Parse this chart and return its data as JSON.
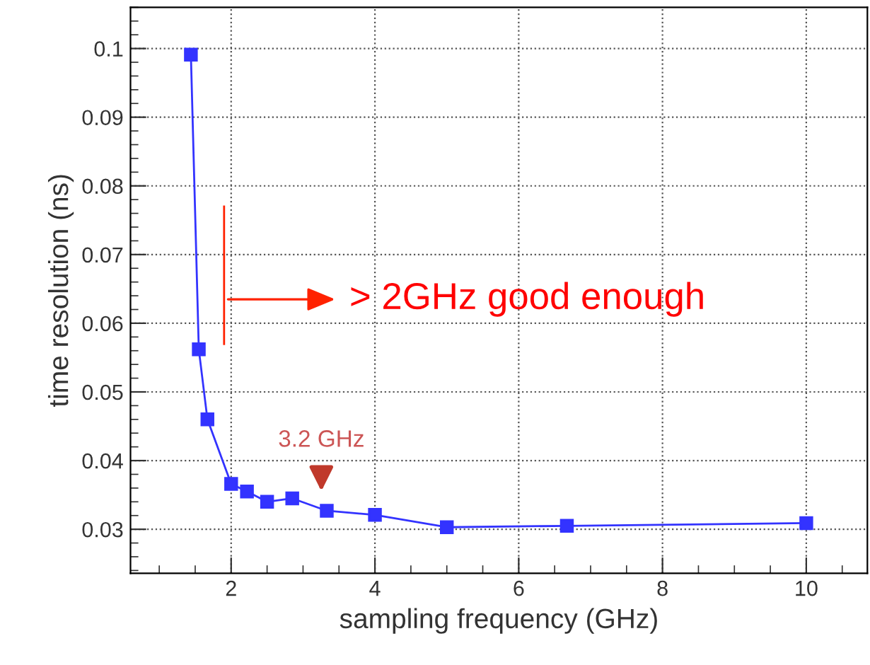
{
  "chart_data": {
    "type": "line",
    "xlabel": "sampling frequency (GHz)",
    "ylabel": "time resolution (ns)",
    "x": [
      1.44,
      1.55,
      1.67,
      2.0,
      2.22,
      2.5,
      2.85,
      3.33,
      4.0,
      5.0,
      6.67,
      10.0
    ],
    "series": [
      {
        "color": "#3333ff",
        "values": [
          0.0991,
          0.0562,
          0.046,
          0.0366,
          0.0355,
          0.034,
          0.0345,
          0.0327,
          0.0321,
          0.0303,
          0.0305,
          0.0309
        ]
      }
    ],
    "marker": "square",
    "line_style": "solid",
    "grid": true,
    "xlim": [
      0.6,
      10.85
    ],
    "xticks": [
      2,
      4,
      6,
      8,
      10
    ],
    "ylim": [
      0.0236,
      0.106
    ],
    "yticks": [
      0.03,
      0.04,
      0.05,
      0.06,
      0.07,
      0.08,
      0.09,
      0.1
    ],
    "annotations": [
      "> 2GHz good enough",
      "3.2 GHz"
    ]
  }
}
